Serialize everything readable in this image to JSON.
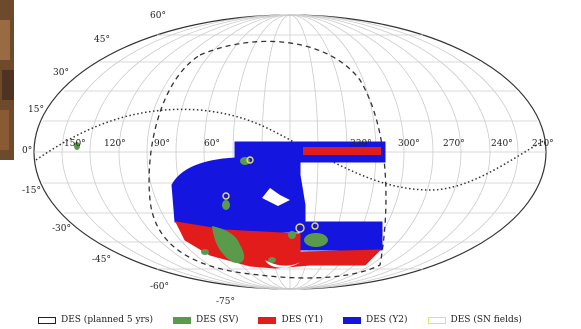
{
  "map": {
    "projection": "aitoff-like",
    "ra_labels": [
      "150°",
      "120°",
      "90°",
      "60°",
      "330°",
      "300°",
      "270°",
      "240°",
      "210°"
    ],
    "dec_labels": [
      "60°",
      "45°",
      "30°",
      "15°",
      "0°",
      "-15°",
      "-30°",
      "-45°",
      "-60°",
      "-75°"
    ]
  },
  "legend": [
    {
      "label": "DES (planned 5 yrs)",
      "fill": "#ffffff",
      "stroke": "#222222"
    },
    {
      "label": "DES (SV)",
      "fill": "#5a9a4a",
      "stroke": "#5a9a4a"
    },
    {
      "label": "DES (Y1)",
      "fill": "#e21b1b",
      "stroke": "#e21b1b"
    },
    {
      "label": "DES (Y2)",
      "fill": "#1515e0",
      "stroke": "#1515e0"
    },
    {
      "label": "DES (SN fields)",
      "fill": "#ffffff",
      "stroke": "#e8e066"
    }
  ],
  "colors": {
    "grid": "#cccccc",
    "outline": "#333333",
    "sv": "#5a9a4a",
    "y1": "#e21b1b",
    "y2": "#1515e0",
    "sn": "#e8e066",
    "corner_photo": "#7a4a2a"
  }
}
